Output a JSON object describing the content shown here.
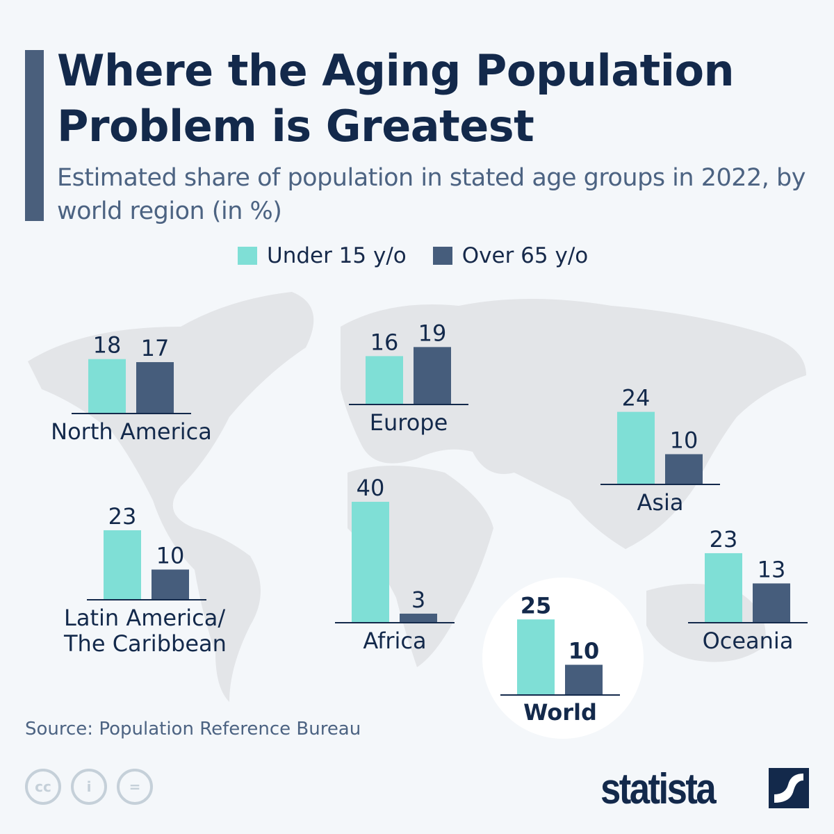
{
  "title": "Where the Aging Population Problem is Greatest",
  "subtitle": "Estimated share of population in stated age groups in 2022, by world region (in %)",
  "source": "Source: Population Reference Bureau",
  "brand": "statista",
  "colors": {
    "under15": "#7fdfd6",
    "over65": "#465d7c",
    "text": "#13294b"
  },
  "chart_data": {
    "type": "bar",
    "title": "Where the Aging Population Problem is Greatest",
    "legend": [
      "Under 15 y/o",
      "Over 65 y/o"
    ],
    "legend_position": "top-center",
    "regions": [
      {
        "name": "North America",
        "under15": 18,
        "over65": 17
      },
      {
        "name": "Europe",
        "under15": 16,
        "over65": 19
      },
      {
        "name": "Asia",
        "under15": 24,
        "over65": 10
      },
      {
        "name": "Latin America/\nThe Caribbean",
        "under15": 23,
        "over65": 10
      },
      {
        "name": "Africa",
        "under15": 40,
        "over65": 3
      },
      {
        "name": "Oceania",
        "under15": 23,
        "over65": 13
      },
      {
        "name": "World",
        "under15": 25,
        "over65": 10
      }
    ]
  }
}
